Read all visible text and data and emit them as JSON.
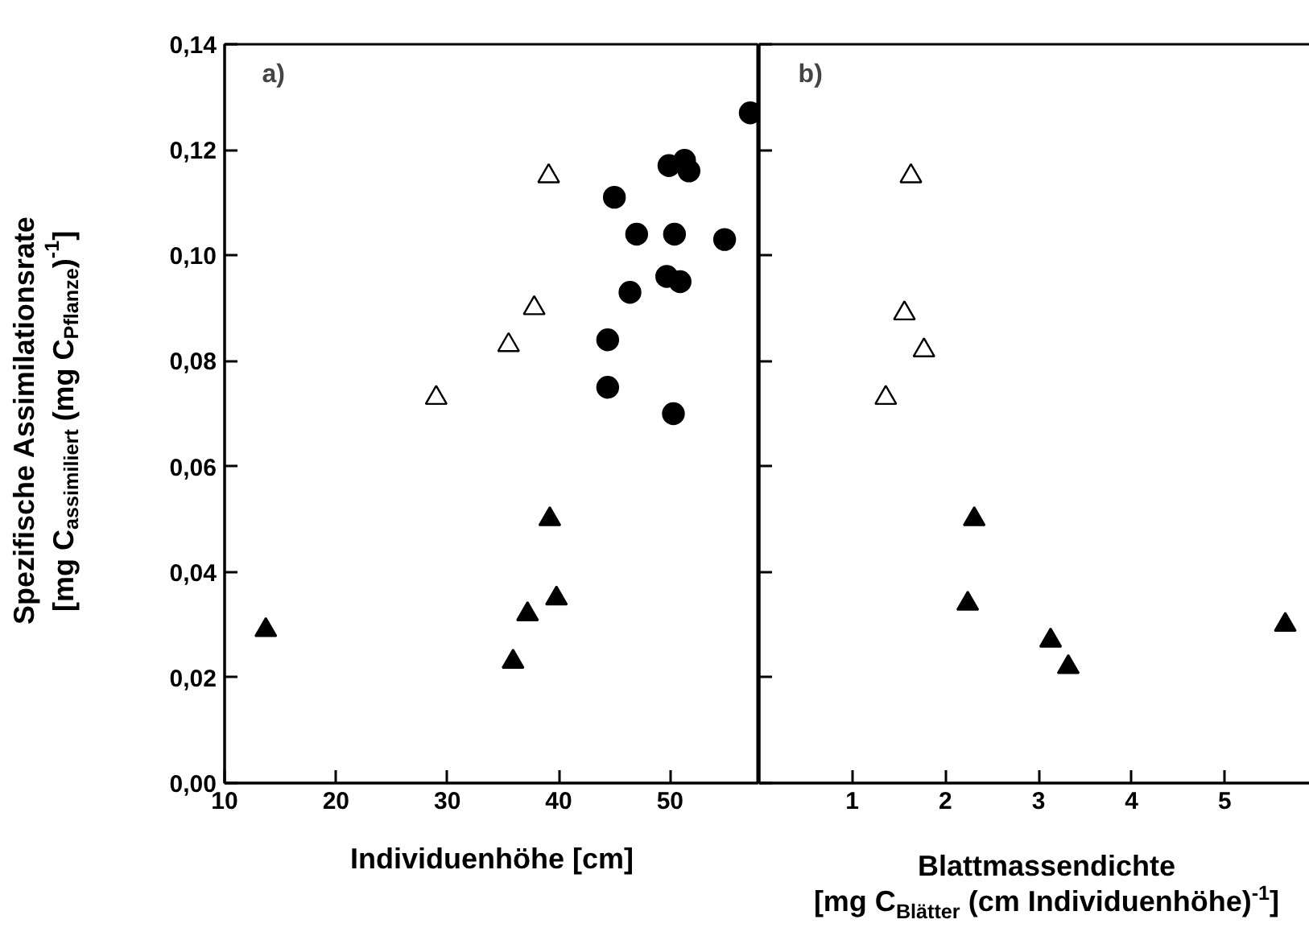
{
  "chart_data": [
    {
      "type": "scatter",
      "xlabel": "Individuenhöhe [cm]",
      "ylabel": "Spezifische Assimilationsrate\n[mg C$_{assimiliert}$ (mg C$_{Pflanze}$)$^{-1}$]",
      "annotations": [
        "a)"
      ],
      "xlim": [
        10,
        58
      ],
      "xticks": [
        10,
        20,
        30,
        40,
        50
      ],
      "ylim": [
        0,
        0.14
      ],
      "yticks": [
        {
          "value": 0,
          "label": "0,00"
        },
        {
          "value": 0.02,
          "label": "0,02"
        },
        {
          "value": 0.04,
          "label": "0,04"
        },
        {
          "value": 0.06,
          "label": "0,06"
        },
        {
          "value": 0.08,
          "label": "0,08"
        },
        {
          "value": 0.1,
          "label": "0,10"
        },
        {
          "value": 0.12,
          "label": "0,12"
        },
        {
          "value": 0.14,
          "label": "0,14"
        }
      ],
      "grid": false,
      "series": [
        {
          "marker": "triangle",
          "color": "#ffffff",
          "x": [
            29.0,
            35.5,
            37.8,
            39.1
          ],
          "values": [
            0.073,
            0.083,
            0.09,
            0.115
          ]
        },
        {
          "marker": "triangle",
          "color": "#000000",
          "x": [
            13.7,
            35.9,
            37.2,
            39.2,
            39.8
          ],
          "values": [
            0.029,
            0.023,
            0.032,
            0.05,
            0.035
          ]
        },
        {
          "marker": "circle",
          "color": "#000000",
          "x": [
            45.0,
            47.0,
            46.4,
            44.4,
            44.4,
            50.3,
            49.9,
            51.3,
            51.7,
            50.4,
            49.7,
            50.9,
            54.9,
            57.2
          ],
          "values": [
            0.111,
            0.104,
            0.093,
            0.084,
            0.075,
            0.07,
            0.117,
            0.118,
            0.116,
            0.104,
            0.096,
            0.095,
            0.103,
            0.127
          ]
        }
      ]
    },
    {
      "type": "scatter",
      "xlabel": "Blattmassendichte\n[mg C$_{Blätter}$ (cm Individuenhöhe)$^{-1}$]",
      "annotations": [
        "b)"
      ],
      "xlim": [
        0,
        6
      ],
      "xticks": [
        1,
        2,
        3,
        4,
        5
      ],
      "ylim": [
        0,
        0.14
      ],
      "yticks": [
        {
          "value": 0,
          "label": null
        },
        {
          "value": 0.02,
          "label": null
        },
        {
          "value": 0.04,
          "label": null
        },
        {
          "value": 0.06,
          "label": null
        },
        {
          "value": 0.08,
          "label": null
        },
        {
          "value": 0.1,
          "label": null
        },
        {
          "value": 0.12,
          "label": null
        },
        {
          "value": 0.14,
          "label": null
        }
      ],
      "tick_labels": "x",
      "grid": false,
      "series": [
        {
          "marker": "triangle",
          "color": "#ffffff",
          "x": [
            1.63,
            1.56,
            1.77,
            1.36
          ],
          "values": [
            0.115,
            0.089,
            0.082,
            0.073
          ]
        },
        {
          "marker": "triangle",
          "color": "#000000",
          "x": [
            2.31,
            2.24,
            3.13,
            3.32,
            5.65
          ],
          "values": [
            0.05,
            0.034,
            0.027,
            0.022,
            0.03
          ]
        }
      ]
    }
  ]
}
